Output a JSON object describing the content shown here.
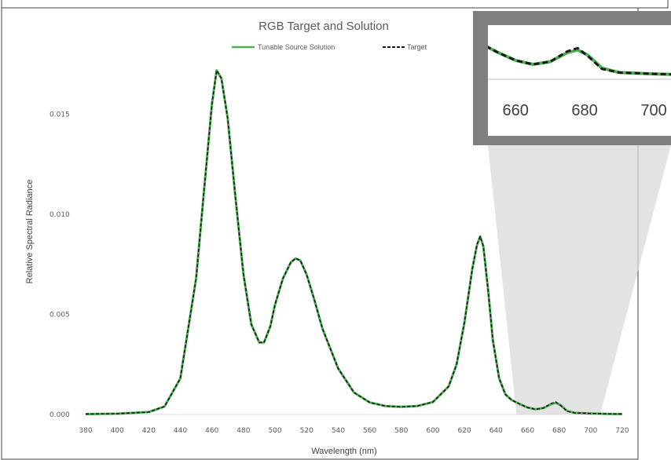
{
  "chart_data": {
    "type": "line",
    "title": "RGB Target and Solution",
    "xlabel": "Wavelength   (nm)",
    "ylabel": "Relative  Spectral  Radiance",
    "xlim": [
      380,
      720
    ],
    "ylim": [
      0,
      0.0175
    ],
    "x_ticks": [
      "380",
      "400",
      "420",
      "440",
      "460",
      "480",
      "500",
      "520",
      "540",
      "560",
      "580",
      "600",
      "620",
      "640",
      "660",
      "680",
      "700",
      "720"
    ],
    "y_ticks": [
      "0.000",
      "0.005",
      "0.010",
      "0.015"
    ],
    "legend_position": "top",
    "grid": false,
    "series": [
      {
        "name": "Tunable Source Solution",
        "color": "#4caf50",
        "style": "solid",
        "x": [
          380,
          400,
          420,
          430,
          440,
          450,
          455,
          460,
          463,
          466,
          470,
          475,
          480,
          485,
          490,
          493,
          497,
          500,
          505,
          510,
          513,
          516,
          520,
          525,
          530,
          540,
          550,
          560,
          570,
          580,
          590,
          600,
          610,
          615,
          620,
          625,
          628,
          630,
          632,
          635,
          638,
          642,
          646,
          650,
          655,
          660,
          665,
          670,
          675,
          678,
          681,
          685,
          690,
          700,
          710,
          720
        ],
        "y": [
          2e-05,
          4e-05,
          0.00012,
          0.0004,
          0.0018,
          0.0068,
          0.0112,
          0.0155,
          0.0172,
          0.0168,
          0.0148,
          0.0108,
          0.007,
          0.0045,
          0.0036,
          0.0036,
          0.0044,
          0.0055,
          0.0068,
          0.0076,
          0.0078,
          0.0077,
          0.007,
          0.0057,
          0.0043,
          0.0023,
          0.0011,
          0.0006,
          0.00042,
          0.00038,
          0.00042,
          0.00062,
          0.0014,
          0.0025,
          0.0046,
          0.0073,
          0.0085,
          0.0089,
          0.0084,
          0.0062,
          0.0037,
          0.0018,
          0.001,
          0.00072,
          0.00052,
          0.00035,
          0.00026,
          0.00032,
          0.00052,
          0.00058,
          0.00046,
          0.00018,
          8e-05,
          5e-05,
          3e-05,
          2e-05
        ]
      },
      {
        "name": "Target",
        "color": "#1a1a1a",
        "style": "dashed",
        "x": [
          380,
          400,
          420,
          430,
          440,
          450,
          455,
          460,
          463,
          466,
          470,
          475,
          480,
          485,
          490,
          493,
          497,
          500,
          505,
          510,
          513,
          516,
          520,
          525,
          530,
          540,
          550,
          560,
          570,
          580,
          590,
          600,
          610,
          615,
          620,
          625,
          628,
          630,
          632,
          635,
          638,
          642,
          646,
          650,
          655,
          660,
          665,
          670,
          675,
          678,
          681,
          685,
          690,
          700,
          710,
          720
        ],
        "y": [
          2e-05,
          4e-05,
          0.00012,
          0.0004,
          0.0018,
          0.0068,
          0.0112,
          0.0155,
          0.0172,
          0.0168,
          0.0148,
          0.0108,
          0.007,
          0.0045,
          0.0036,
          0.0036,
          0.0044,
          0.0055,
          0.0068,
          0.0076,
          0.0078,
          0.0077,
          0.007,
          0.0057,
          0.0043,
          0.0023,
          0.0011,
          0.0006,
          0.00042,
          0.00038,
          0.00042,
          0.00062,
          0.0014,
          0.0025,
          0.0046,
          0.0073,
          0.0085,
          0.0089,
          0.0084,
          0.0062,
          0.0037,
          0.0018,
          0.001,
          0.00072,
          0.00052,
          0.00035,
          0.00026,
          0.00032,
          0.00055,
          0.00062,
          0.00044,
          0.00016,
          8e-05,
          5e-05,
          3e-05,
          2e-05
        ]
      }
    ],
    "inset": {
      "x_ticks": [
        "660",
        "680",
        "700"
      ],
      "xlim": [
        652,
        705
      ]
    },
    "colors": {
      "inset_frame": "#7f7f7f",
      "zoom_region": "#d9d9d9"
    }
  }
}
